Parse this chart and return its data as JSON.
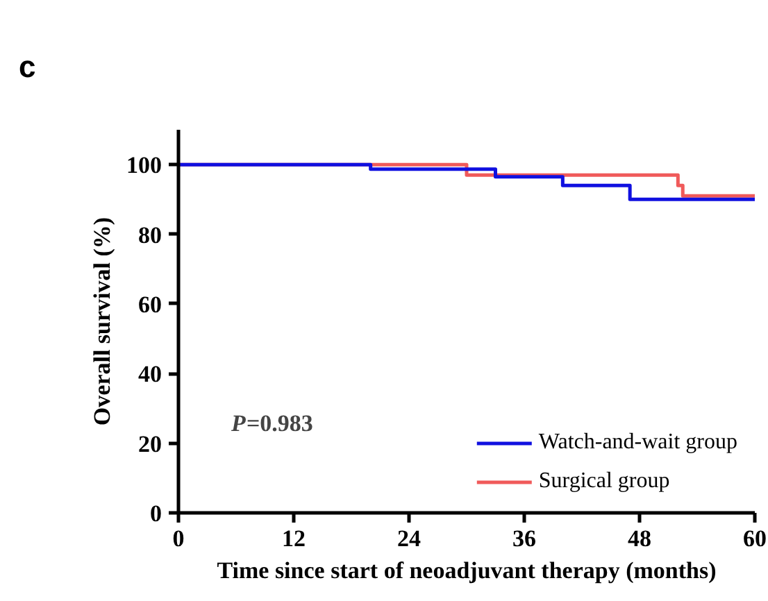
{
  "chart_data": {
    "type": "step",
    "title": "c",
    "xlabel": "Time since start of neoadjuvant therapy (months)",
    "ylabel": "Overall survival (%)",
    "series": [
      {
        "name": "Watch-and-wait group",
        "color": "#1010e0",
        "x": [
          0,
          20,
          33,
          40,
          47,
          60
        ],
        "values": [
          100,
          98.7,
          96.5,
          94,
          90,
          90
        ]
      },
      {
        "name": "Surgical group",
        "color": "#f05a5a",
        "x": [
          0,
          30,
          52,
          52.5,
          60
        ],
        "values": [
          100,
          97,
          94,
          91,
          91
        ]
      }
    ],
    "xlim": [
      0,
      60
    ],
    "ylim": [
      0,
      110
    ],
    "xticks": [
      0,
      12,
      24,
      36,
      48,
      60
    ],
    "yticks": [
      0,
      20,
      40,
      60,
      80,
      100
    ],
    "grid": false,
    "legend": "bottom right",
    "annotations": [
      "P=0.983"
    ]
  }
}
